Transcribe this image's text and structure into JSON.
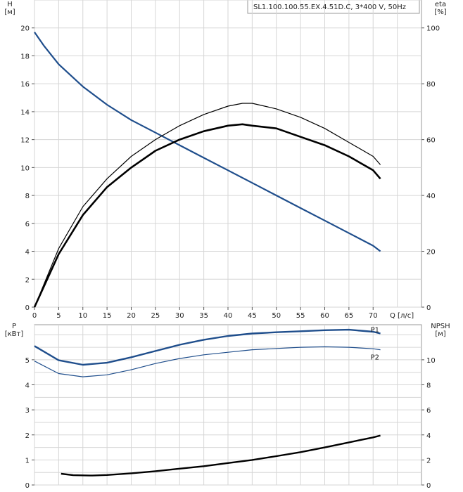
{
  "chart_data": [
    {
      "type": "line",
      "title": "SL1.100.100.55.EX.4.51D.C, 3*400 V, 50Hz",
      "xlabel": "Q [л/с]",
      "ylabel": "H\n[м]",
      "y2label": "eta\n[%]",
      "xlim": [
        0,
        80
      ],
      "ylim": [
        0,
        22
      ],
      "y2lim": [
        0,
        110
      ],
      "xticks": [
        0,
        5,
        10,
        15,
        20,
        25,
        30,
        35,
        40,
        45,
        50,
        55,
        60,
        65,
        70
      ],
      "yticks": [
        0,
        2,
        4,
        6,
        8,
        10,
        12,
        14,
        16,
        18,
        20
      ],
      "y2ticks": [
        0,
        20,
        40,
        60,
        80,
        100
      ],
      "grid": true,
      "series": [
        {
          "axis": "H",
          "color": "#1f4e8c",
          "x": [
            0,
            2,
            5,
            10,
            15,
            20,
            25,
            30,
            35,
            40,
            45,
            50,
            55,
            60,
            65,
            70,
            71.5
          ],
          "y": [
            19.7,
            18.7,
            17.4,
            15.8,
            14.5,
            13.4,
            12.5,
            11.6,
            10.7,
            9.8,
            8.9,
            8.0,
            7.1,
            6.2,
            5.3,
            4.4,
            4.0
          ]
        },
        {
          "axis": "eta",
          "color": "#000000",
          "weight": "thin",
          "x": [
            0,
            5,
            10,
            15,
            20,
            25,
            30,
            35,
            40,
            43,
            45,
            50,
            55,
            60,
            65,
            70,
            71.5
          ],
          "y": [
            0,
            21,
            36,
            46,
            54,
            60,
            65,
            69,
            72,
            73,
            73,
            71,
            68,
            64,
            59,
            54,
            51
          ]
        },
        {
          "axis": "eta",
          "color": "#000000",
          "weight": "bold",
          "x": [
            0,
            5,
            10,
            15,
            20,
            25,
            30,
            35,
            40,
            43,
            45,
            50,
            55,
            60,
            65,
            70,
            71.5
          ],
          "y": [
            0,
            19,
            33,
            43,
            50,
            56,
            60,
            63,
            65,
            65.5,
            65,
            64,
            61,
            58,
            54,
            49,
            46
          ]
        }
      ]
    },
    {
      "type": "line",
      "ylabel": "P\n[кВт]",
      "y2label": "NPSH\n[м]",
      "xlim": [
        0,
        80
      ],
      "ylim": [
        0,
        6.4
      ],
      "y2lim": [
        0,
        12.8
      ],
      "yticks": [
        0,
        1,
        2,
        3,
        4,
        5
      ],
      "y2ticks": [
        0,
        2,
        4,
        6,
        8,
        10
      ],
      "grid": true,
      "series": [
        {
          "name": "P1",
          "axis": "P",
          "color": "#1f4e8c",
          "weight": "bold",
          "x": [
            0,
            5,
            10,
            15,
            20,
            25,
            30,
            35,
            40,
            45,
            50,
            55,
            60,
            65,
            70,
            71.5
          ],
          "y": [
            5.55,
            4.98,
            4.8,
            4.88,
            5.1,
            5.35,
            5.6,
            5.8,
            5.95,
            6.05,
            6.1,
            6.14,
            6.18,
            6.2,
            6.12,
            6.05
          ]
        },
        {
          "name": "P2",
          "axis": "P",
          "color": "#1f4e8c",
          "weight": "thin",
          "x": [
            0,
            5,
            10,
            15,
            20,
            25,
            30,
            35,
            40,
            45,
            50,
            55,
            60,
            65,
            70,
            71.5
          ],
          "y": [
            4.95,
            4.45,
            4.32,
            4.4,
            4.6,
            4.85,
            5.05,
            5.2,
            5.3,
            5.4,
            5.45,
            5.5,
            5.52,
            5.5,
            5.44,
            5.4
          ]
        },
        {
          "axis": "NPSH",
          "color": "#000000",
          "weight": "bold",
          "x": [
            5.5,
            8,
            12,
            15,
            20,
            25,
            30,
            35,
            40,
            45,
            50,
            55,
            60,
            65,
            70,
            71.5
          ],
          "y": [
            0.9,
            0.78,
            0.75,
            0.8,
            0.93,
            1.1,
            1.3,
            1.5,
            1.75,
            2.0,
            2.3,
            2.62,
            3.0,
            3.4,
            3.8,
            3.95
          ]
        }
      ]
    }
  ]
}
